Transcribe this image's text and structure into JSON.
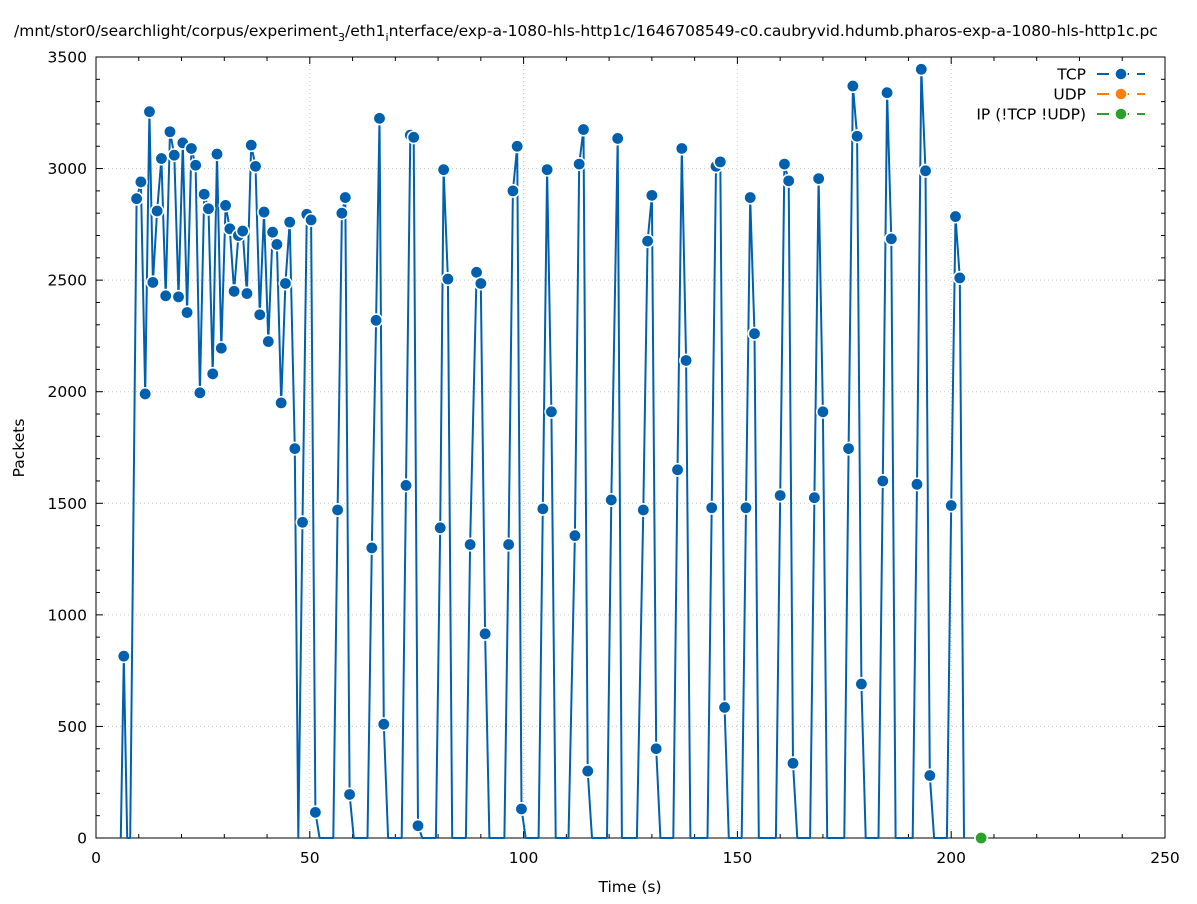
{
  "chart_data": {
    "type": "line",
    "title_parts": {
      "pre": "/mnt/stor0/searchlight/corpus/experiment",
      "sub1": "3",
      "mid": "/eth1",
      "sub2": "i",
      "post": "nterface/exp-a-1080-hls-http1c/1646708549-c0.caubryvid.hdumb.pharos-exp-a-1080-hls-http1c.pc"
    },
    "xlabel": "Time (s)",
    "ylabel": "Packets",
    "xlim": [
      0,
      250
    ],
    "ylim": [
      0,
      3500
    ],
    "xticks": [
      0,
      50,
      100,
      150,
      200,
      250
    ],
    "yticks": [
      0,
      500,
      1000,
      1500,
      2000,
      2500,
      3000,
      3500
    ],
    "grid": true,
    "legend_position": "top-right",
    "series": [
      {
        "name": "TCP",
        "color": "#0060ad",
        "points": [
          [
            5.8,
            0
          ],
          [
            6.5,
            815
          ],
          [
            7.3,
            0
          ],
          [
            8.0,
            0
          ],
          [
            9.5,
            2865
          ],
          [
            10.5,
            2940
          ],
          [
            11.5,
            1990
          ],
          [
            12.5,
            3255
          ],
          [
            13.3,
            2490
          ],
          [
            14.3,
            2810
          ],
          [
            15.3,
            3045
          ],
          [
            16.3,
            2430
          ],
          [
            17.3,
            3165
          ],
          [
            18.3,
            3060
          ],
          [
            19.3,
            2425
          ],
          [
            20.3,
            3115
          ],
          [
            21.3,
            2355
          ],
          [
            22.3,
            3090
          ],
          [
            23.3,
            3015
          ],
          [
            24.3,
            1995
          ],
          [
            25.3,
            2885
          ],
          [
            26.3,
            2820
          ],
          [
            27.3,
            2080
          ],
          [
            28.3,
            3065
          ],
          [
            29.3,
            2195
          ],
          [
            30.3,
            2835
          ],
          [
            31.3,
            2730
          ],
          [
            32.3,
            2450
          ],
          [
            33.3,
            2700
          ],
          [
            34.3,
            2720
          ],
          [
            35.3,
            2440
          ],
          [
            36.3,
            3105
          ],
          [
            37.3,
            3010
          ],
          [
            38.3,
            2345
          ],
          [
            39.3,
            2805
          ],
          [
            40.3,
            2225
          ],
          [
            41.3,
            2715
          ],
          [
            42.3,
            2660
          ],
          [
            43.3,
            1950
          ],
          [
            44.3,
            2485
          ],
          [
            45.3,
            2760
          ],
          [
            46.5,
            1745
          ],
          [
            47.3,
            0
          ],
          [
            48.3,
            1415
          ],
          [
            49.3,
            2795
          ],
          [
            50.3,
            2770
          ],
          [
            51.3,
            115
          ],
          [
            52.3,
            0
          ],
          [
            55.5,
            0
          ],
          [
            56.5,
            1470
          ],
          [
            57.5,
            2800
          ],
          [
            58.3,
            2870
          ],
          [
            59.3,
            195
          ],
          [
            60.3,
            0
          ],
          [
            63.5,
            0
          ],
          [
            64.5,
            1300
          ],
          [
            65.5,
            2320
          ],
          [
            66.3,
            3225
          ],
          [
            67.3,
            510
          ],
          [
            68.3,
            0
          ],
          [
            71.5,
            0
          ],
          [
            72.5,
            1580
          ],
          [
            73.5,
            3150
          ],
          [
            74.3,
            3140
          ],
          [
            75.3,
            55
          ],
          [
            76.3,
            0
          ],
          [
            79.5,
            0
          ],
          [
            80.5,
            1390
          ],
          [
            81.3,
            2995
          ],
          [
            82.3,
            2505
          ],
          [
            83.3,
            0
          ],
          [
            86.5,
            0
          ],
          [
            87.5,
            1315
          ],
          [
            89.0,
            2535
          ],
          [
            90.0,
            2485
          ],
          [
            91.0,
            915
          ],
          [
            92.0,
            0
          ],
          [
            95.5,
            0
          ],
          [
            96.5,
            1315
          ],
          [
            97.5,
            2900
          ],
          [
            98.5,
            3100
          ],
          [
            99.5,
            130
          ],
          [
            100.5,
            0
          ],
          [
            103.5,
            0
          ],
          [
            104.5,
            1475
          ],
          [
            105.5,
            2995
          ],
          [
            106.5,
            1910
          ],
          [
            107.5,
            0
          ],
          [
            110.5,
            0
          ],
          [
            112.0,
            1355
          ],
          [
            113.0,
            3020
          ],
          [
            114.0,
            3175
          ],
          [
            115.0,
            300
          ],
          [
            116.0,
            0
          ],
          [
            119.5,
            0
          ],
          [
            120.5,
            1515
          ],
          [
            122.0,
            3135
          ],
          [
            123.0,
            0
          ],
          [
            126.5,
            0
          ],
          [
            128.0,
            1470
          ],
          [
            129.0,
            2675
          ],
          [
            130.0,
            2880
          ],
          [
            131.0,
            400
          ],
          [
            132.0,
            0
          ],
          [
            135.0,
            0
          ],
          [
            136.0,
            1650
          ],
          [
            137.0,
            3090
          ],
          [
            138.0,
            2140
          ],
          [
            139.0,
            0
          ],
          [
            143.0,
            0
          ],
          [
            144.0,
            1480
          ],
          [
            145.0,
            3010
          ],
          [
            146.0,
            3030
          ],
          [
            147.0,
            585
          ],
          [
            148.0,
            0
          ],
          [
            151.0,
            0
          ],
          [
            152.0,
            1480
          ],
          [
            153.0,
            2870
          ],
          [
            154.0,
            2260
          ],
          [
            155.0,
            0
          ],
          [
            159.0,
            0
          ],
          [
            160.0,
            1535
          ],
          [
            161.0,
            3020
          ],
          [
            162.0,
            2945
          ],
          [
            163.0,
            335
          ],
          [
            164.0,
            0
          ],
          [
            167.0,
            0
          ],
          [
            168.0,
            1525
          ],
          [
            169.0,
            2955
          ],
          [
            170.0,
            1910
          ],
          [
            171.0,
            0
          ],
          [
            175.0,
            0
          ],
          [
            176.0,
            1745
          ],
          [
            177.0,
            3370
          ],
          [
            178.0,
            3145
          ],
          [
            179.0,
            690
          ],
          [
            180.0,
            0
          ],
          [
            183.0,
            0
          ],
          [
            184.0,
            1600
          ],
          [
            185.0,
            3340
          ],
          [
            186.0,
            2685
          ],
          [
            187.0,
            0
          ],
          [
            191.0,
            0
          ],
          [
            192.0,
            1585
          ],
          [
            193.0,
            3445
          ],
          [
            194.0,
            2990
          ],
          [
            195.0,
            280
          ],
          [
            196.0,
            0
          ],
          [
            199.0,
            0
          ],
          [
            200.0,
            1490
          ],
          [
            201.0,
            2785
          ],
          [
            202.0,
            2510
          ],
          [
            203.0,
            0
          ]
        ]
      },
      {
        "name": "UDP",
        "color": "#ff7f0e",
        "points": []
      },
      {
        "name": "IP (!TCP  !UDP)",
        "color": "#2ca02c",
        "points": [
          [
            207.0,
            0
          ]
        ]
      }
    ]
  }
}
